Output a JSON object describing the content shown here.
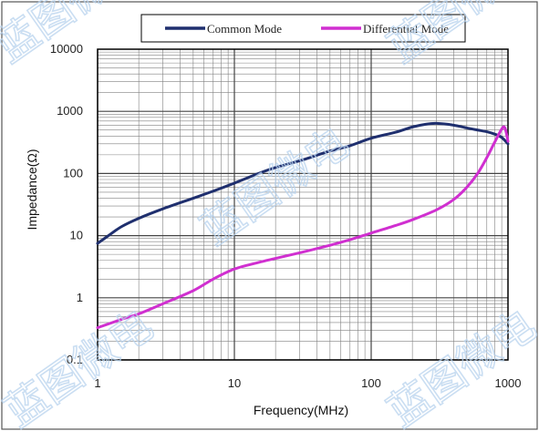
{
  "colors": {
    "common_mode": "#1f2f6e",
    "differential_mode": "#d02fd0",
    "grid": "#808080",
    "watermark": "#b9d3ee"
  },
  "watermark_text": "蓝图微电",
  "chart_data": {
    "type": "line",
    "title": "",
    "xlabel": "Frequency(MHz)",
    "ylabel": "Impedance(Ω)",
    "xscale": "log",
    "yscale": "log",
    "xlim": [
      1,
      1000
    ],
    "ylim": [
      0.1,
      10000
    ],
    "grid": true,
    "legend_position": "top",
    "x_ticks": [
      {
        "value": 1,
        "label": "1"
      },
      {
        "value": 10,
        "label": "10"
      },
      {
        "value": 100,
        "label": "100"
      },
      {
        "value": 1000,
        "label": "1000"
      }
    ],
    "y_ticks": [
      {
        "value": 0.1,
        "label": "0.1"
      },
      {
        "value": 1,
        "label": "1"
      },
      {
        "value": 10,
        "label": "10"
      },
      {
        "value": 100,
        "label": "100"
      },
      {
        "value": 1000,
        "label": "1000"
      },
      {
        "value": 10000,
        "label": "10000"
      }
    ],
    "series": [
      {
        "name": "Common Mode",
        "color": "#1f2f6e",
        "points": [
          [
            1,
            7.5
          ],
          [
            1.2,
            10
          ],
          [
            1.5,
            14
          ],
          [
            2,
            19
          ],
          [
            3,
            27
          ],
          [
            5,
            40
          ],
          [
            7,
            52
          ],
          [
            10,
            70
          ],
          [
            15,
            100
          ],
          [
            20,
            125
          ],
          [
            30,
            160
          ],
          [
            50,
            230
          ],
          [
            70,
            280
          ],
          [
            100,
            370
          ],
          [
            150,
            460
          ],
          [
            200,
            560
          ],
          [
            250,
            620
          ],
          [
            300,
            640
          ],
          [
            400,
            600
          ],
          [
            500,
            540
          ],
          [
            600,
            500
          ],
          [
            700,
            470
          ],
          [
            800,
            430
          ],
          [
            900,
            380
          ],
          [
            1000,
            300
          ]
        ]
      },
      {
        "name": "Differential Mode",
        "color": "#d02fd0",
        "points": [
          [
            1,
            0.33
          ],
          [
            1.5,
            0.45
          ],
          [
            2,
            0.55
          ],
          [
            3,
            0.8
          ],
          [
            5,
            1.3
          ],
          [
            7,
            2
          ],
          [
            10,
            2.9
          ],
          [
            15,
            3.7
          ],
          [
            20,
            4.3
          ],
          [
            30,
            5.3
          ],
          [
            50,
            7
          ],
          [
            70,
            8.6
          ],
          [
            100,
            11
          ],
          [
            150,
            14.5
          ],
          [
            200,
            18
          ],
          [
            300,
            26
          ],
          [
            400,
            38
          ],
          [
            500,
            60
          ],
          [
            600,
            100
          ],
          [
            700,
            180
          ],
          [
            800,
            320
          ],
          [
            900,
            520
          ],
          [
            950,
            540
          ],
          [
            1000,
            330
          ]
        ]
      }
    ]
  }
}
